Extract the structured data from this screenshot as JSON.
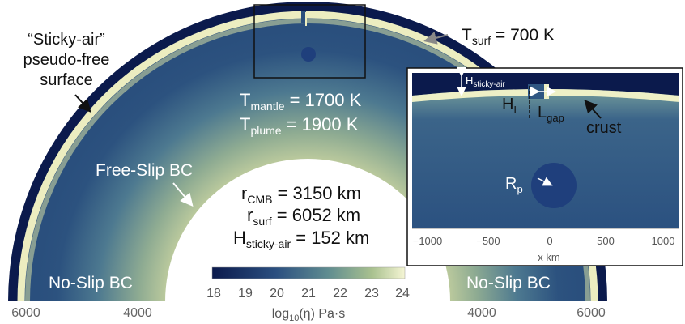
{
  "colors": {
    "sticky_air": "#0b1a4c",
    "mantle_deep": "#25487a",
    "mantle_mid": "#4f7d8f",
    "mantle_warm": "#9fb893",
    "crust": "#f0f0c4",
    "text_white": "#ffffff",
    "text_dark": "#111111",
    "tick_gray": "#666666"
  },
  "labels": {
    "sticky_air_line1": "“Sticky-air”",
    "sticky_air_line2": "pseudo-free",
    "sticky_air_line3": "surface",
    "t_surf_main": "T",
    "t_surf_sub": "surf",
    "t_surf_val": " = 700 K",
    "t_mantle_main": "T",
    "t_mantle_sub": "mantle",
    "t_mantle_val": " = 1700 K",
    "t_plume_main": "T",
    "t_plume_sub": "plume",
    "t_plume_val": " = 1900 K",
    "free_slip": "Free-Slip BC",
    "r_cmb_main": "r",
    "r_cmb_sub": "CMB",
    "r_cmb_val": " = 3150 km",
    "r_surf_main": "r",
    "r_surf_sub": "surf",
    "r_surf_val": " = 6052 km",
    "h_sticky_main": "H",
    "h_sticky_sub": "sticky-air",
    "h_sticky_val": " = 152 km",
    "no_slip_left": "No-Slip BC",
    "no_slip_right": "No-Slip BC"
  },
  "x_axis_ticks": [
    "6000",
    "4000",
    "4000",
    "6000"
  ],
  "colorbar": {
    "ticks": [
      "18",
      "19",
      "20",
      "21",
      "22",
      "23",
      "24"
    ],
    "label_prefix": "log",
    "label_sub": "10",
    "label_suffix": "(η) Pa·s"
  },
  "inset": {
    "h_sticky_main": "H",
    "h_sticky_sub": "sticky-air",
    "h_l_main": "H",
    "h_l_sub": "L",
    "l_gap_main": "L",
    "l_gap_sub": "gap",
    "crust": "crust",
    "r_p_main": "R",
    "r_p_sub": "p",
    "x_ticks": [
      "−1000",
      "−500",
      "0",
      "500",
      "1000"
    ],
    "x_label": "x km"
  }
}
